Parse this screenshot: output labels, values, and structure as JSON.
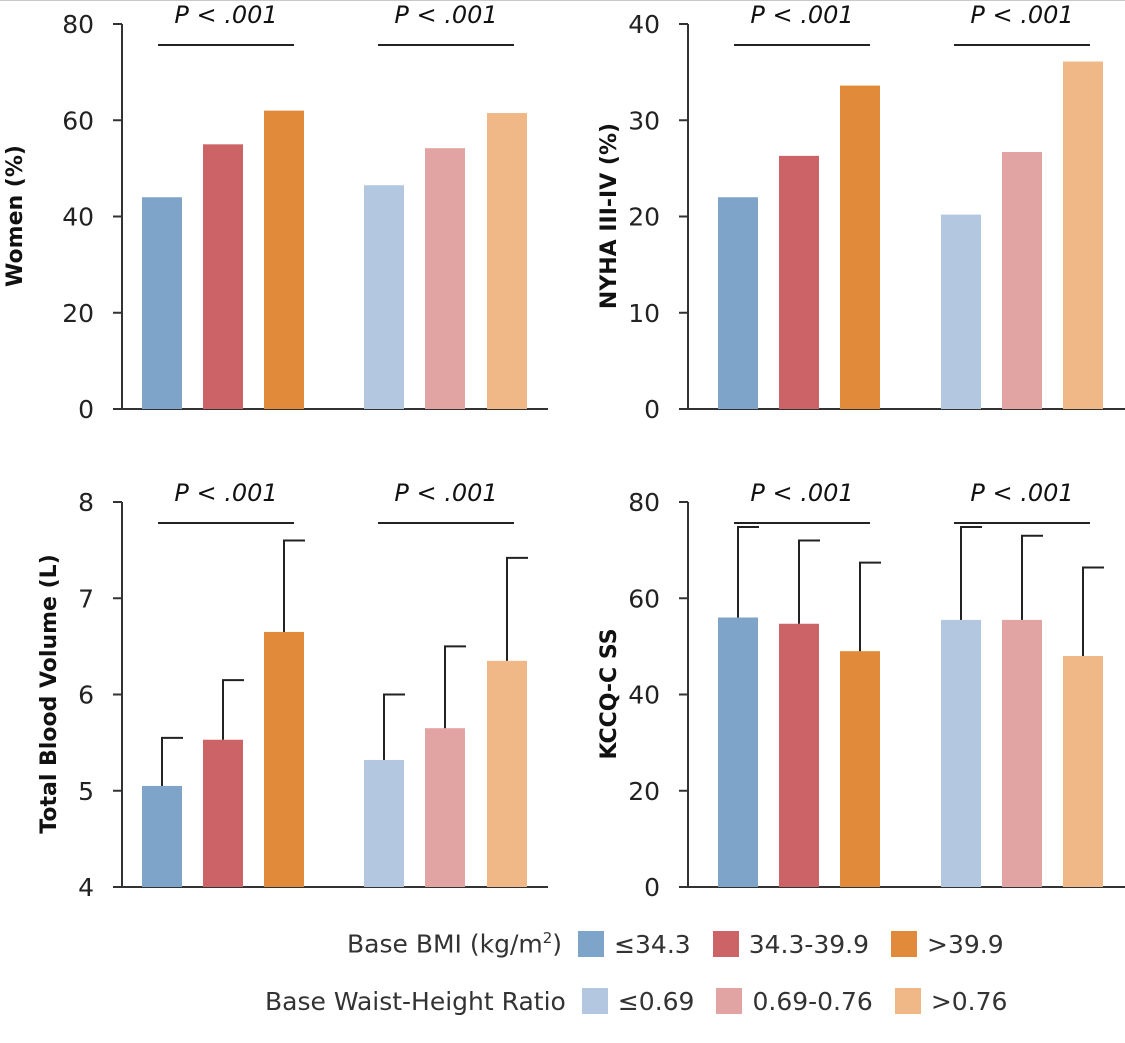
{
  "chart_data": [
    {
      "type": "bar",
      "ylabel": "Women (%)",
      "ylim": [
        0,
        80
      ],
      "yticks": [
        0,
        20,
        40,
        60,
        80
      ],
      "groups": [
        {
          "name": "Base BMI",
          "pvalue": "P < .001",
          "categories": [
            "≤34.3",
            "34.3-39.9",
            ">39.9"
          ],
          "values": [
            44,
            55,
            62
          ]
        },
        {
          "name": "Base Waist-Height Ratio",
          "pvalue": "P < .001",
          "categories": [
            "≤0.69",
            "0.69-0.76",
            ">0.76"
          ],
          "values": [
            46.5,
            54.2,
            61.5
          ]
        }
      ]
    },
    {
      "type": "bar",
      "ylabel": "NYHA III-IV (%)",
      "ylim": [
        0,
        40
      ],
      "yticks": [
        0,
        10,
        20,
        30,
        40
      ],
      "groups": [
        {
          "name": "Base BMI",
          "pvalue": "P < .001",
          "categories": [
            "≤34.3",
            "34.3-39.9",
            ">39.9"
          ],
          "values": [
            22,
            26.3,
            33.6
          ]
        },
        {
          "name": "Base Waist-Height Ratio",
          "pvalue": "P < .001",
          "categories": [
            "≤0.69",
            "0.69-0.76",
            ">0.76"
          ],
          "values": [
            20.2,
            26.7,
            36.1
          ]
        }
      ]
    },
    {
      "type": "bar",
      "ylabel": "Total Blood Volume (L)",
      "ylim": [
        4,
        8
      ],
      "yticks": [
        4,
        5,
        6,
        7,
        8
      ],
      "groups": [
        {
          "name": "Base BMI",
          "pvalue": "P < .001",
          "categories": [
            "≤34.3",
            "34.3-39.9",
            ">39.9"
          ],
          "values": [
            5.05,
            5.53,
            6.65
          ],
          "errors": [
            5.55,
            6.15,
            7.6
          ]
        },
        {
          "name": "Base Waist-Height Ratio",
          "pvalue": "P < .001",
          "categories": [
            "≤0.69",
            "0.69-0.76",
            ">0.76"
          ],
          "values": [
            5.32,
            5.65,
            6.35
          ],
          "errors": [
            6.0,
            6.5,
            7.42
          ]
        }
      ]
    },
    {
      "type": "bar",
      "ylabel": "KCCQ-C SS",
      "ylim": [
        0,
        80
      ],
      "yticks": [
        0,
        20,
        40,
        60,
        80
      ],
      "groups": [
        {
          "name": "Base BMI",
          "pvalue": "P < .001",
          "categories": [
            "≤34.3",
            "34.3-39.9",
            ">39.9"
          ],
          "values": [
            56,
            54.7,
            49
          ],
          "errors": [
            74.8,
            72,
            67.4
          ]
        },
        {
          "name": "Base Waist-Height Ratio",
          "pvalue": "P < .001",
          "categories": [
            "≤0.69",
            "0.69-0.76",
            ">0.76"
          ],
          "values": [
            55.5,
            55.5,
            48
          ],
          "errors": [
            74.8,
            73,
            66.4
          ]
        }
      ]
    }
  ],
  "colors": {
    "bmi": [
      "#7fa4ca",
      "#cc6366",
      "#e08a3a"
    ],
    "whr": [
      "#b4c7e1",
      "#e2a3a3",
      "#f0b887"
    ]
  },
  "legend": {
    "bmi_label": "Base BMI (kg/m",
    "bmi_label_sup": "2",
    "bmi_label_end": ")",
    "bmi_items": [
      "≤34.3",
      "34.3-39.9",
      ">39.9"
    ],
    "whr_label": "Base Waist-Height Ratio",
    "whr_items": [
      "≤0.69",
      "0.69-0.76",
      ">0.76"
    ]
  }
}
